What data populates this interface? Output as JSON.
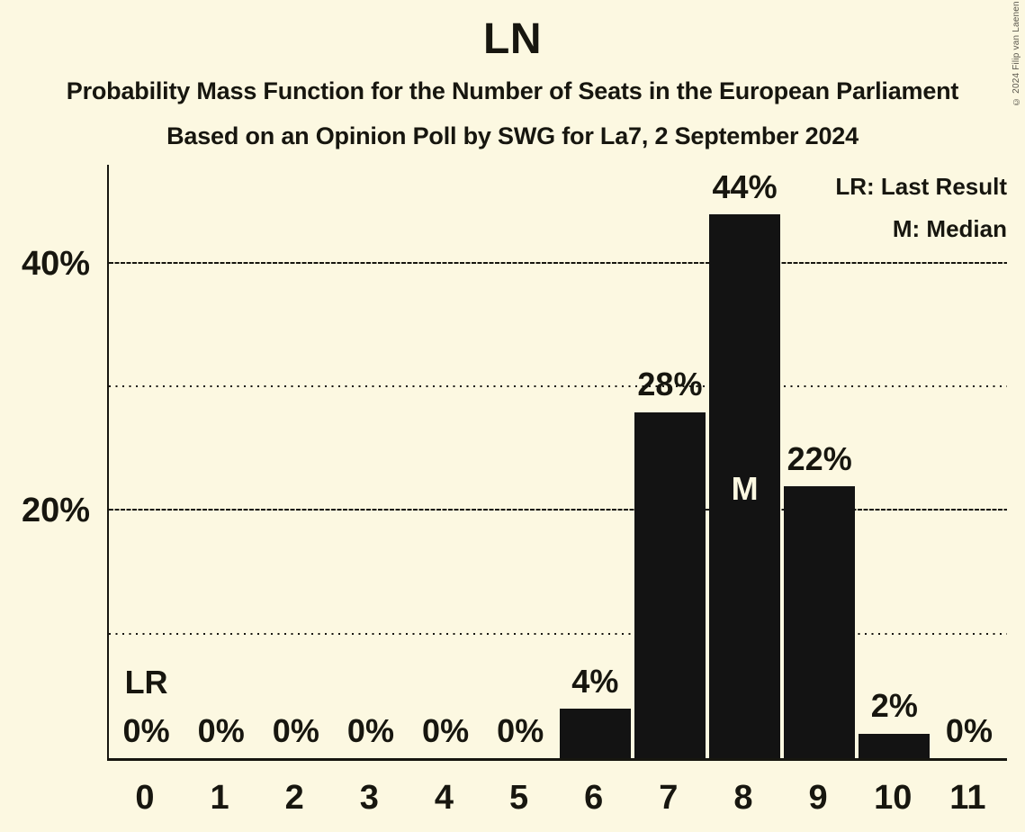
{
  "title": "LN",
  "copyright": "© 2024 Filip van Laenen",
  "colors": {
    "background": "#fcf8e1",
    "bar": "#131313",
    "text": "#17160f",
    "bar_inner_label": "#fcf8e1",
    "copyright_text": "#5a574d"
  },
  "legend": {
    "lr": "LR: Last Result",
    "m": "M: Median"
  },
  "chart_data": {
    "type": "bar",
    "title": "LN",
    "subtitle": "Probability Mass Function for the Number of Seats in the European Parliament",
    "caption": "Based on an Opinion Poll by SWG for La7, 2 September 2024",
    "xlabel": "",
    "ylabel": "",
    "categories": [
      "0",
      "1",
      "2",
      "3",
      "4",
      "5",
      "6",
      "7",
      "8",
      "9",
      "10",
      "11"
    ],
    "values": [
      0,
      0,
      0,
      0,
      0,
      0,
      4,
      28,
      44,
      22,
      2,
      0
    ],
    "value_labels": [
      "0%",
      "0%",
      "0%",
      "0%",
      "0%",
      "0%",
      "4%",
      "28%",
      "44%",
      "22%",
      "2%",
      "0%"
    ],
    "ylim": [
      0,
      48
    ],
    "yticks": [
      {
        "value": 20,
        "label": "20%"
      },
      {
        "value": 40,
        "label": "40%"
      }
    ],
    "gridlines": {
      "solid_at": [
        20,
        40
      ],
      "dotted_at": [
        10,
        30
      ]
    },
    "grid": true,
    "legend_position": "top-right",
    "legend_entries": [
      {
        "key": "LR",
        "label": "LR: Last Result"
      },
      {
        "key": "M",
        "label": "M: Median"
      }
    ],
    "annotations": {
      "last_result": {
        "category": "0",
        "label": "LR"
      },
      "median": {
        "category": "8",
        "label": "M"
      }
    }
  }
}
